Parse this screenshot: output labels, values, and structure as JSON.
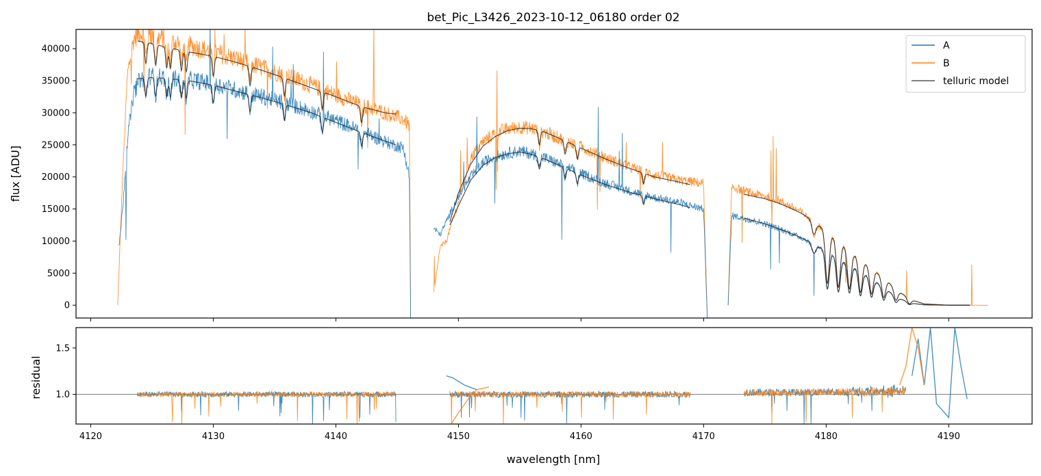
{
  "chart_data": [
    {
      "type": "line",
      "panel": "flux",
      "title": "bet_Pic_L3426_2023-10-12_06180  order 02",
      "xlabel": "",
      "ylabel": "flux [ADU]",
      "xlim": [
        4118.8,
        4196.8
      ],
      "ylim": [
        -2000,
        43000
      ],
      "yticks": [
        0,
        5000,
        10000,
        15000,
        20000,
        25000,
        30000,
        35000,
        40000
      ],
      "yticklabels": [
        "0",
        "5000",
        "10000",
        "15000",
        "20000",
        "25000",
        "30000",
        "35000",
        "40000"
      ],
      "legend": {
        "position": "top-right",
        "entries": [
          "A",
          "B",
          "telluric model"
        ]
      },
      "series": [
        {
          "name": "A",
          "color": "#1f77b4",
          "segments": [
            {
              "x": [
                4122.3,
                4122.6,
                4123.0,
                4123.5,
                4124.0,
                4125.0,
                4126.0,
                4128.0,
                4130.0,
                4132.0,
                4134.0,
                4136.0,
                4138.0,
                4140.0,
                4142.0,
                4144.0,
                4145.5,
                4146.0,
                4146.1
              ],
              "y": [
                9000,
                15000,
                26000,
                33000,
                35200,
                35800,
                35500,
                35200,
                34500,
                33500,
                32500,
                31500,
                30200,
                28800,
                27200,
                25500,
                24500,
                20000,
                -2000
              ]
            },
            {
              "x": [
                4148.0,
                4148.5,
                4149.0,
                4150.0,
                4151.0,
                4152.0,
                4153.0,
                4154.0,
                4155.0,
                4156.0,
                4157.0,
                4158.0,
                4160.0,
                4162.0,
                4164.0,
                4166.0,
                4168.0,
                4170.0,
                4170.3
              ],
              "y": [
                12000,
                11000,
                13000,
                17000,
                20000,
                22200,
                23200,
                23700,
                24000,
                23600,
                23000,
                22200,
                20500,
                19000,
                17800,
                16800,
                16000,
                15000,
                -2000
              ]
            },
            {
              "x": [
                4172.0,
                4172.3,
                4173.0,
                4174.0,
                4175.0,
                4176.0,
                4177.0,
                4178.0,
                4179.0,
                4180.0,
                4181.0,
                4182.0,
                4183.0,
                4184.0,
                4185.0,
                4186.0,
                4187.0,
                4188.0,
                4190.0,
                4191.8
              ],
              "y": [
                0,
                14000,
                13700,
                13200,
                12700,
                12000,
                11300,
                10500,
                9500,
                8500,
                7300,
                6200,
                5000,
                3700,
                2300,
                1000,
                300,
                50,
                0,
                0
              ]
            }
          ]
        },
        {
          "name": "B",
          "color": "#ff7f0e",
          "segments": [
            {
              "x": [
                4122.2,
                4122.6,
                4123.0,
                4123.5,
                4124.0,
                4125.0,
                4126.0,
                4128.0,
                4130.0,
                4132.0,
                4134.0,
                4136.0,
                4138.0,
                4140.0,
                4142.0,
                4144.0,
                4145.5,
                4146.0,
                4146.1
              ],
              "y": [
                0,
                20000,
                36000,
                41500,
                42500,
                42000,
                41500,
                40500,
                39500,
                38300,
                37000,
                35800,
                34300,
                32800,
                31300,
                30000,
                29000,
                28000,
                -2000
              ]
            },
            {
              "x": [
                4148.0,
                4148.5,
                4149.0,
                4150.0,
                4151.0,
                4152.0,
                4153.0,
                4154.0,
                4155.0,
                4156.0,
                4157.0,
                4158.0,
                4160.0,
                4162.0,
                4164.0,
                4166.0,
                4168.0,
                4170.0,
                4170.3
              ],
              "y": [
                2000,
                9000,
                10000,
                16000,
                23000,
                25500,
                26800,
                27500,
                27800,
                27600,
                27000,
                26200,
                24700,
                23000,
                21500,
                20300,
                19500,
                19000,
                -2000
              ]
            },
            {
              "x": [
                4172.0,
                4172.3,
                4173.0,
                4174.0,
                4175.0,
                4176.0,
                4177.0,
                4178.0,
                4179.0,
                4180.0,
                4181.0,
                4182.0,
                4183.0,
                4184.0,
                4185.0,
                4186.0,
                4187.0,
                4188.0,
                4190.0,
                4193.2
              ],
              "y": [
                0,
                18500,
                18000,
                17400,
                17000,
                16500,
                15500,
                14500,
                13000,
                11500,
                10000,
                8300,
                6800,
                5300,
                3700,
                2000,
                800,
                200,
                0,
                0
              ]
            }
          ]
        },
        {
          "name": "telluric model",
          "color": "#000000",
          "segments": [
            {
              "x": [
                4123.8,
                4125.0,
                4126.0,
                4128.0,
                4130.0,
                4132.0,
                4134.0,
                4136.0,
                4138.0,
                4140.0,
                4142.0,
                4144.0,
                4144.9
              ],
              "y": [
                35300,
                35500,
                35400,
                35000,
                34300,
                33300,
                32300,
                31200,
                30000,
                28500,
                27000,
                25600,
                25000
              ]
            },
            {
              "x": [
                4123.8,
                4125.0,
                4126.0,
                4128.0,
                4130.0,
                4132.0,
                4134.0,
                4136.0,
                4138.0,
                4140.0,
                4142.0,
                4144.0,
                4144.9
              ],
              "y": [
                41200,
                40800,
                40300,
                39500,
                38800,
                37800,
                36600,
                35300,
                33900,
                32500,
                31000,
                30000,
                29800
              ]
            },
            {
              "x": [
                4149.3,
                4150.0,
                4151.0,
                4152.0,
                4153.0,
                4154.0,
                4155.0,
                4156.0,
                4157.0,
                4158.0,
                4160.0,
                4162.0,
                4164.0,
                4166.0,
                4168.0,
                4168.9
              ],
              "y": [
                12500,
                15500,
                19500,
                21800,
                23000,
                23600,
                23900,
                23500,
                22800,
                22000,
                20300,
                18800,
                17600,
                16600,
                15700,
                15200
              ]
            },
            {
              "x": [
                4149.3,
                4150.0,
                4151.0,
                4152.0,
                4153.0,
                4154.0,
                4155.0,
                4156.0,
                4157.0,
                4158.0,
                4160.0,
                4162.0,
                4164.0,
                4166.0,
                4168.0,
                4168.9
              ],
              "y": [
                13000,
                17500,
                22000,
                24800,
                26300,
                27200,
                27600,
                27500,
                27000,
                26200,
                24500,
                22800,
                21300,
                20000,
                19200,
                18800
              ]
            },
            {
              "x": [
                4173.3,
                4174.0,
                4175.0,
                4176.0,
                4177.0,
                4178.0,
                4179.0,
                4180.0,
                4181.0,
                4182.0,
                4183.0,
                4184.0,
                4185.0,
                4186.0,
                4187.0,
                4188.0,
                4190.0,
                4191.7
              ],
              "y": [
                13600,
                13200,
                12700,
                12000,
                11300,
                10500,
                9500,
                8500,
                7300,
                6200,
                5000,
                3700,
                2300,
                1000,
                300,
                50,
                0,
                0
              ]
            },
            {
              "x": [
                4173.3,
                4174.0,
                4175.0,
                4176.0,
                4177.0,
                4178.0,
                4179.0,
                4180.0,
                4181.0,
                4182.0,
                4183.0,
                4184.0,
                4185.0,
                4186.0,
                4187.0,
                4188.0,
                4190.0,
                4191.7
              ],
              "y": [
                17300,
                17000,
                16600,
                16000,
                15200,
                14300,
                13000,
                11500,
                10000,
                8300,
                6800,
                5300,
                3700,
                2000,
                800,
                200,
                0,
                0
              ]
            }
          ]
        }
      ],
      "absorption_lines": {
        "panel1_segment": [
          4124.5,
          4125.3,
          4126.2,
          4126.5,
          4127.4,
          4127.8,
          4130.0,
          4133.0,
          4135.8,
          4138.9,
          4142.1
        ],
        "panel2_segment": [
          4156.6,
          4158.7,
          4159.7,
          4165.1
        ],
        "panel3_segment": [
          4179.0,
          4180.1,
          4181.0,
          4181.9,
          4182.8,
          4183.7,
          4184.7,
          4185.7,
          4186.8
        ],
        "depth_fraction_panel3": [
          0.15,
          0.7,
          0.72,
          0.7,
          0.72,
          0.7,
          0.72,
          0.7,
          0.8
        ]
      }
    },
    {
      "type": "line",
      "panel": "residual",
      "xlabel": "wavelength [nm]",
      "ylabel": "residual",
      "xlim": [
        4118.8,
        4196.8
      ],
      "ylim": [
        0.68,
        1.72
      ],
      "reference_line": 1.0,
      "xticks": [
        4120,
        4130,
        4140,
        4150,
        4160,
        4170,
        4180,
        4190
      ],
      "xticklabels": [
        "4120",
        "4130",
        "4140",
        "4150",
        "4160",
        "4170",
        "4180",
        "4190"
      ],
      "yticks": [
        1.0,
        1.5
      ],
      "yticklabels": [
        "1.0",
        "1.5"
      ],
      "series": [
        {
          "name": "A",
          "color": "#1f77b4",
          "segments": [
            {
              "x": [
                4123.8,
                4144.9
              ],
              "y_center": 1.0,
              "noise": 0.03
            },
            {
              "x": [
                4149.3,
                4168.9
              ],
              "y_center": 1.0,
              "noise": 0.035
            },
            {
              "x": [
                4173.3,
                4186.5
              ],
              "y_center": 1.02,
              "noise": 0.04
            }
          ],
          "features": [
            {
              "x": [
                4149.0,
                4149.5,
                4150.5,
                4151.5
              ],
              "y": [
                1.2,
                1.18,
                1.1,
                1.05
              ]
            },
            {
              "x": [
                4187.0,
                4187.5,
                4188.0,
                4188.5,
                4189.0,
                4190.0,
                4190.5,
                4191.0,
                4191.5
              ],
              "y": [
                1.2,
                1.6,
                1.1,
                1.72,
                0.9,
                0.75,
                1.72,
                1.3,
                0.95
              ]
            }
          ]
        },
        {
          "name": "B",
          "color": "#ff7f0e",
          "segments": [
            {
              "x": [
                4123.8,
                4144.9
              ],
              "y_center": 1.0,
              "noise": 0.025
            },
            {
              "x": [
                4149.3,
                4168.9
              ],
              "y_center": 1.0,
              "noise": 0.03
            },
            {
              "x": [
                4173.3,
                4186.5
              ],
              "y_center": 1.02,
              "noise": 0.035
            }
          ],
          "features": [
            {
              "x": [
                4149.4,
                4150.0,
                4150.8,
                4151.5,
                4152.5
              ],
              "y": [
                0.68,
                0.8,
                0.95,
                1.05,
                1.08
              ]
            },
            {
              "x": [
                4186.0,
                4186.5,
                4187.0,
                4187.5,
                4188.0
              ],
              "y": [
                1.1,
                1.3,
                1.72,
                1.5,
                1.1
              ]
            }
          ]
        }
      ]
    }
  ]
}
